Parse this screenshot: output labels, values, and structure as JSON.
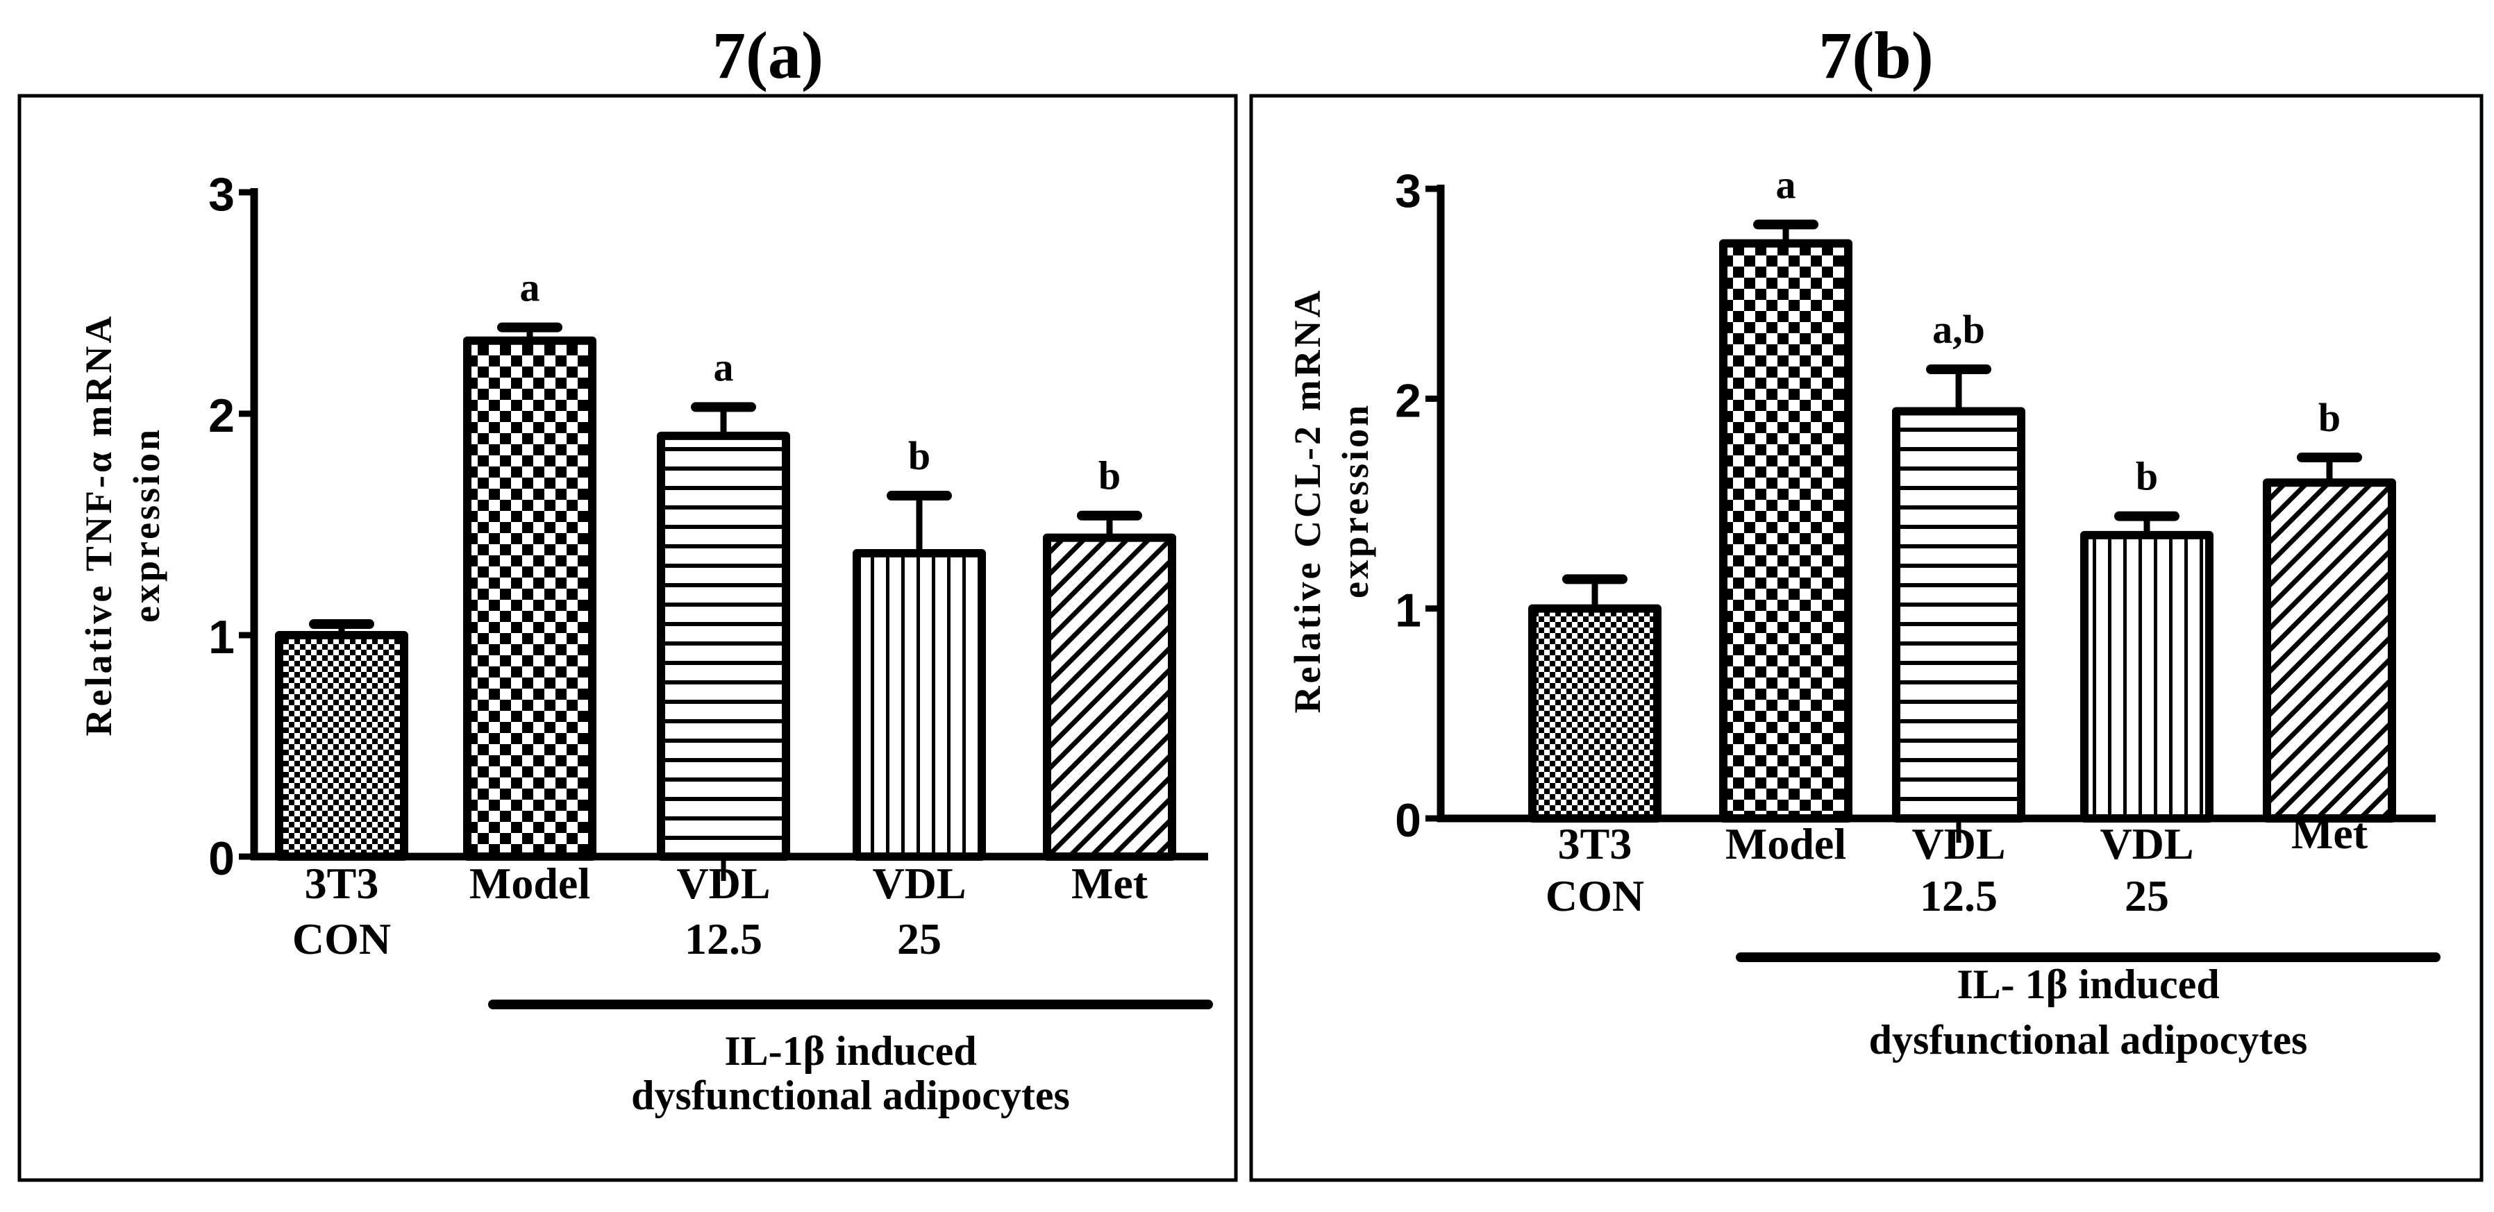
{
  "chart_data": [
    {
      "type": "bar",
      "title": "7(a)",
      "ylabel": [
        "Relative  TNF-α  mRNA",
        "expression"
      ],
      "ylim": [
        0,
        3
      ],
      "yticks": [
        "0",
        "1",
        "2",
        "3"
      ],
      "categories": [
        [
          "3T3",
          "CON"
        ],
        [
          "Model"
        ],
        [
          "VDL",
          "12.5"
        ],
        [
          "VDL",
          "25"
        ],
        [
          "Met"
        ]
      ],
      "values": [
        1.0,
        2.33,
        1.9,
        1.37,
        1.44
      ],
      "errors": [
        0.05,
        0.06,
        0.13,
        0.26,
        0.1
      ],
      "significance": [
        "",
        "a",
        "a",
        "b",
        "b"
      ],
      "patterns": [
        "fine-checker",
        "checker",
        "horizontal-lines",
        "vertical-lines",
        "diagonal-lines"
      ],
      "group_label": [
        "IL-1β induced",
        "dysfunctional adipocytes"
      ],
      "grid": false
    },
    {
      "type": "bar",
      "title": "7(b)",
      "ylabel": [
        "Relative  CCL-2 mRNA",
        "expression"
      ],
      "ylim": [
        0,
        3
      ],
      "yticks": [
        "0",
        "1",
        "2",
        "3"
      ],
      "categories": [
        [
          "3T3",
          "CON"
        ],
        [
          "Model"
        ],
        [
          "VDL",
          "12.5"
        ],
        [
          "VDL",
          "25"
        ],
        [
          "Met"
        ]
      ],
      "values": [
        1.0,
        2.74,
        1.94,
        1.35,
        1.6
      ],
      "errors": [
        0.14,
        0.09,
        0.2,
        0.09,
        0.12
      ],
      "significance": [
        "",
        "a",
        "a,b",
        "b",
        "b"
      ],
      "patterns": [
        "fine-checker",
        "checker",
        "horizontal-lines",
        "vertical-lines",
        "diagonal-lines"
      ],
      "group_label": [
        "IL- 1β induced",
        "dysfunctional adipocytes"
      ],
      "grid": false
    }
  ]
}
